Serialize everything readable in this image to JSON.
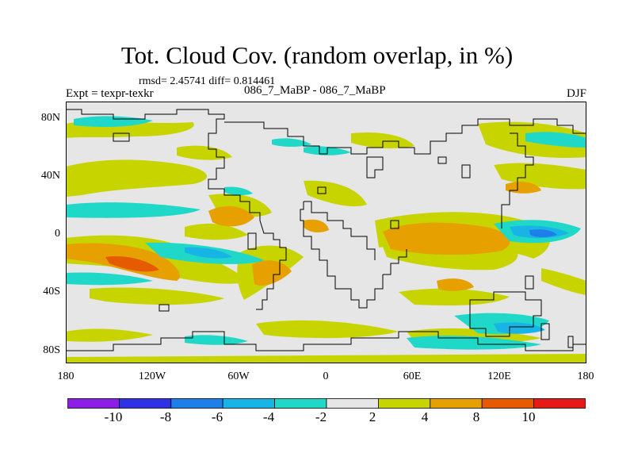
{
  "title": "Tot. Cloud Cov. (random overlap, in %)",
  "stats": "rmsd= 2.45741 diff= 0.814461",
  "experiment": "Expt = texpr-texkr",
  "case": "086_7_MaBP - 086_7_MaBP",
  "season": "DJF",
  "x_ticks": [
    "180",
    "120W",
    "60W",
    "0",
    "60E",
    "120E",
    "180"
  ],
  "y_ticks": [
    "80N",
    "40N",
    "0",
    "40S",
    "80S"
  ],
  "colorbar": {
    "labels": [
      "-10",
      "-8",
      "-6",
      "-4",
      "-2",
      "2",
      "4",
      "8",
      "10"
    ],
    "colors": [
      "#8c1ee8",
      "#3030e6",
      "#1f7fe8",
      "#18b4e6",
      "#20d8c8",
      "#e6e6e6",
      "#c8d400",
      "#e6a000",
      "#e65a00",
      "#e61818"
    ]
  },
  "palette": {
    "background": "#e6e6e6",
    "coast": "#000000"
  }
}
